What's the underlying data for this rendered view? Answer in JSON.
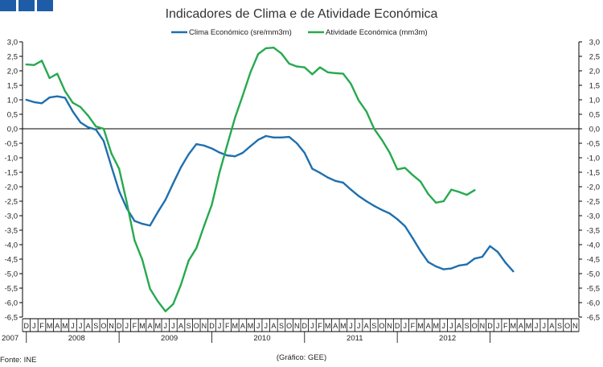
{
  "colors": {
    "header_square": "#1e5ca8",
    "series_clima": "#1f6fae",
    "series_atividade": "#27a94f",
    "axis": "#000000"
  },
  "footer": {
    "source": "Fonte: INE",
    "credit": "(Gráfico: GEE)"
  },
  "chart_data": {
    "type": "line",
    "title": "Indicadores de Clima e de Atividade Económica",
    "ylim": [
      -6.5,
      3.0
    ],
    "y_ticks": [
      "3,0",
      "2,5",
      "2,0",
      "1,5",
      "1,0",
      "0,5",
      "0,0",
      "-0,5",
      "-1,0",
      "-1,5",
      "-2,0",
      "-2,5",
      "-3,0",
      "-3,5",
      "-4,0",
      "-4,5",
      "-5,0",
      "-5,5",
      "-6,0",
      "-6,5"
    ],
    "y_tick_values": [
      3.0,
      2.5,
      2.0,
      1.5,
      1.0,
      0.5,
      0.0,
      -0.5,
      -1.0,
      -1.5,
      -2.0,
      -2.5,
      -3.0,
      -3.5,
      -4.0,
      -4.5,
      -5.0,
      -5.5,
      -6.0,
      -6.5
    ],
    "x_month_labels": [
      "D",
      "J",
      "F",
      "M",
      "A",
      "M",
      "J",
      "J",
      "A",
      "S",
      "O",
      "N",
      "D",
      "J",
      "F",
      "M",
      "A",
      "M",
      "J",
      "J",
      "A",
      "S",
      "O",
      "N",
      "D",
      "J",
      "F",
      "M",
      "A",
      "M",
      "J",
      "J",
      "A",
      "S",
      "O",
      "N",
      "D",
      "J",
      "F",
      "M",
      "A",
      "M",
      "J",
      "J",
      "A",
      "S",
      "O",
      "N",
      "D",
      "J",
      "F",
      "M",
      "A",
      "M",
      "J",
      "J",
      "A",
      "S",
      "O",
      "N",
      "D",
      "J",
      "F",
      "M",
      "A",
      "M",
      "J",
      "J",
      "A",
      "S",
      "O",
      "N"
    ],
    "year_labels": [
      {
        "label": "2007",
        "month_index": 0
      },
      {
        "label": "2008",
        "month_index": 6.5
      },
      {
        "label": "2009",
        "month_index": 18.5
      },
      {
        "label": "2010",
        "month_index": 30.5
      },
      {
        "label": "2011",
        "month_index": 42.5
      },
      {
        "label": "2012",
        "month_index": 54.5
      }
    ],
    "year_separators": [
      0.5,
      12.5,
      24.5,
      36.5,
      48.5,
      60.5
    ],
    "series": [
      {
        "name": "Clima Económico (sre/mm3m)",
        "values": [
          1.0,
          0.92,
          0.88,
          1.08,
          1.12,
          1.07,
          0.6,
          0.22,
          0.05,
          -0.03,
          -0.42,
          -1.3,
          -2.15,
          -2.75,
          -3.18,
          -3.28,
          -3.34,
          -2.88,
          -2.45,
          -1.88,
          -1.33,
          -0.88,
          -0.53,
          -0.58,
          -0.68,
          -0.82,
          -0.92,
          -0.95,
          -0.83,
          -0.6,
          -0.38,
          -0.25,
          -0.3,
          -0.3,
          -0.28,
          -0.5,
          -0.83,
          -1.38,
          -1.52,
          -1.68,
          -1.8,
          -1.86,
          -2.1,
          -2.32,
          -2.5,
          -2.66,
          -2.8,
          -2.92,
          -3.12,
          -3.36,
          -3.78,
          -4.22,
          -4.6,
          -4.75,
          -4.85,
          -4.82,
          -4.72,
          -4.68,
          -4.48,
          -4.42,
          -4.05,
          -4.25,
          -4.62,
          -4.92
        ]
      },
      {
        "name": "Atividade Económica (mm3m)",
        "values": [
          2.22,
          2.2,
          2.35,
          1.75,
          1.9,
          1.3,
          0.9,
          0.75,
          0.45,
          0.08,
          0.0,
          -0.85,
          -1.38,
          -2.55,
          -3.85,
          -4.52,
          -5.52,
          -5.95,
          -6.3,
          -6.05,
          -5.38,
          -4.55,
          -4.12,
          -3.35,
          -2.62,
          -1.5,
          -0.55,
          0.38,
          1.15,
          1.95,
          2.58,
          2.78,
          2.8,
          2.6,
          2.25,
          2.15,
          2.12,
          1.88,
          2.12,
          1.95,
          1.92,
          1.9,
          1.55,
          0.98,
          0.6,
          0.0,
          -0.38,
          -0.82,
          -1.4,
          -1.35,
          -1.6,
          -1.82,
          -2.25,
          -2.55,
          -2.5,
          -2.1,
          -2.18,
          -2.28,
          -2.12
        ]
      }
    ]
  }
}
